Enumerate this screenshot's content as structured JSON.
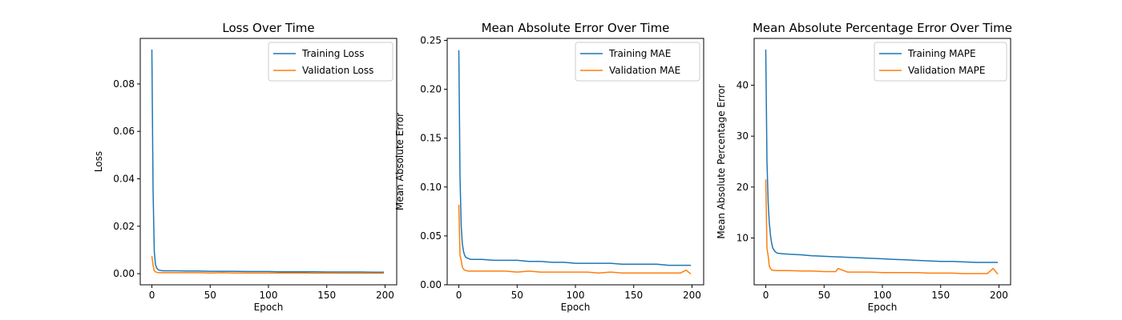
{
  "chart_data": [
    {
      "type": "line",
      "title": "Loss Over Time",
      "xlabel": "Epoch",
      "ylabel": "Loss",
      "xlim": [
        -10,
        210
      ],
      "ylim": [
        -0.0047,
        0.0992
      ],
      "xticks": [
        0,
        50,
        100,
        150,
        200
      ],
      "xtick_labels": [
        "0",
        "50",
        "100",
        "150",
        "200"
      ],
      "yticks": [
        0.0,
        0.02,
        0.04,
        0.06,
        0.08
      ],
      "ytick_labels": [
        "0.00",
        "0.02",
        "0.04",
        "0.06",
        "0.08"
      ],
      "legend": "top-right",
      "grid": false,
      "series": [
        {
          "name": "Training Loss",
          "color": "#1f77b4",
          "x": [
            0,
            1,
            2,
            3,
            4,
            5,
            6,
            8,
            10,
            15,
            20,
            30,
            40,
            50,
            60,
            70,
            80,
            90,
            100,
            110,
            120,
            130,
            140,
            150,
            160,
            170,
            180,
            190,
            199
          ],
          "y": [
            0.0945,
            0.035,
            0.0095,
            0.004,
            0.0025,
            0.0018,
            0.0015,
            0.0013,
            0.0012,
            0.0012,
            0.0012,
            0.0011,
            0.0011,
            0.001,
            0.001,
            0.001,
            0.0009,
            0.0009,
            0.0009,
            0.0008,
            0.0008,
            0.0008,
            0.0008,
            0.0007,
            0.0007,
            0.0007,
            0.0007,
            0.0006,
            0.0006
          ]
        },
        {
          "name": "Validation Loss",
          "color": "#ff7f0e",
          "x": [
            0,
            1,
            2,
            3,
            4,
            5,
            8,
            10,
            20,
            30,
            40,
            50,
            60,
            70,
            80,
            90,
            100,
            110,
            120,
            130,
            140,
            150,
            160,
            170,
            180,
            190,
            199
          ],
          "y": [
            0.0075,
            0.0035,
            0.0012,
            0.0008,
            0.0006,
            0.0005,
            0.0004,
            0.0004,
            0.0004,
            0.0004,
            0.0004,
            0.0003,
            0.0004,
            0.0003,
            0.0003,
            0.0003,
            0.0003,
            0.0003,
            0.0003,
            0.0003,
            0.0002,
            0.0003,
            0.0002,
            0.0002,
            0.0002,
            0.0002,
            0.0002
          ]
        }
      ]
    },
    {
      "type": "line",
      "title": "Mean Absolute Error Over Time",
      "xlabel": "Epoch",
      "ylabel": "Mean Absolute Error",
      "xlim": [
        -10,
        210
      ],
      "ylim": [
        0.0,
        0.252
      ],
      "xticks": [
        0,
        50,
        100,
        150,
        200
      ],
      "xtick_labels": [
        "0",
        "50",
        "100",
        "150",
        "200"
      ],
      "yticks": [
        0.0,
        0.05,
        0.1,
        0.15,
        0.2,
        0.25
      ],
      "ytick_labels": [
        "0.00",
        "0.05",
        "0.10",
        "0.15",
        "0.20",
        "0.25"
      ],
      "legend": "top-right",
      "grid": false,
      "series": [
        {
          "name": "Training MAE",
          "color": "#1f77b4",
          "x": [
            0,
            1,
            2,
            3,
            4,
            5,
            6,
            8,
            10,
            15,
            20,
            30,
            40,
            50,
            60,
            70,
            80,
            90,
            100,
            110,
            120,
            130,
            140,
            150,
            160,
            170,
            180,
            190,
            199
          ],
          "y": [
            0.24,
            0.11,
            0.06,
            0.042,
            0.034,
            0.03,
            0.028,
            0.027,
            0.026,
            0.026,
            0.026,
            0.025,
            0.025,
            0.025,
            0.024,
            0.024,
            0.023,
            0.023,
            0.022,
            0.022,
            0.022,
            0.022,
            0.021,
            0.021,
            0.021,
            0.021,
            0.02,
            0.02,
            0.02
          ]
        },
        {
          "name": "Validation MAE",
          "color": "#ff7f0e",
          "x": [
            0,
            1,
            2,
            3,
            4,
            5,
            8,
            10,
            20,
            30,
            40,
            50,
            60,
            70,
            80,
            90,
            100,
            110,
            120,
            130,
            140,
            150,
            160,
            170,
            180,
            190,
            195,
            199
          ],
          "y": [
            0.082,
            0.03,
            0.025,
            0.018,
            0.016,
            0.015,
            0.014,
            0.014,
            0.014,
            0.014,
            0.014,
            0.013,
            0.014,
            0.013,
            0.013,
            0.013,
            0.013,
            0.013,
            0.012,
            0.013,
            0.012,
            0.012,
            0.012,
            0.012,
            0.012,
            0.012,
            0.015,
            0.011
          ]
        }
      ]
    },
    {
      "type": "line",
      "title": "Mean Absolute Percentage Error Over Time",
      "xlabel": "Epoch",
      "ylabel": "Mean Absolute Percentage Error",
      "xlim": [
        -10,
        210
      ],
      "ylim": [
        0.8,
        49.2
      ],
      "xticks": [
        0,
        50,
        100,
        150,
        200
      ],
      "xtick_labels": [
        "0",
        "50",
        "100",
        "150",
        "200"
      ],
      "yticks": [
        10,
        20,
        30,
        40
      ],
      "ytick_labels": [
        "10",
        "20",
        "30",
        "40"
      ],
      "legend": "top-right",
      "grid": false,
      "series": [
        {
          "name": "Training MAPE",
          "color": "#1f77b4",
          "x": [
            0,
            1,
            2,
            3,
            4,
            5,
            6,
            8,
            10,
            15,
            20,
            30,
            40,
            50,
            60,
            70,
            80,
            90,
            100,
            110,
            120,
            130,
            140,
            150,
            160,
            170,
            180,
            190,
            199
          ],
          "y": [
            47.0,
            25.0,
            17.0,
            13.0,
            10.5,
            9.0,
            8.0,
            7.3,
            7.0,
            6.9,
            6.8,
            6.7,
            6.5,
            6.4,
            6.3,
            6.2,
            6.1,
            6.0,
            5.9,
            5.8,
            5.7,
            5.6,
            5.5,
            5.4,
            5.4,
            5.3,
            5.2,
            5.2,
            5.2
          ]
        },
        {
          "name": "Validation MAPE",
          "color": "#ff7f0e",
          "x": [
            0,
            1,
            2,
            3,
            4,
            5,
            8,
            10,
            20,
            30,
            40,
            50,
            60,
            62,
            70,
            80,
            90,
            100,
            110,
            120,
            130,
            140,
            150,
            160,
            170,
            180,
            190,
            195,
            199
          ],
          "y": [
            21.5,
            8.0,
            6.5,
            4.5,
            4.0,
            3.7,
            3.6,
            3.6,
            3.6,
            3.5,
            3.5,
            3.4,
            3.4,
            4.0,
            3.3,
            3.3,
            3.3,
            3.2,
            3.2,
            3.2,
            3.2,
            3.1,
            3.1,
            3.1,
            3.0,
            3.0,
            3.0,
            4.0,
            2.9
          ]
        }
      ]
    }
  ]
}
